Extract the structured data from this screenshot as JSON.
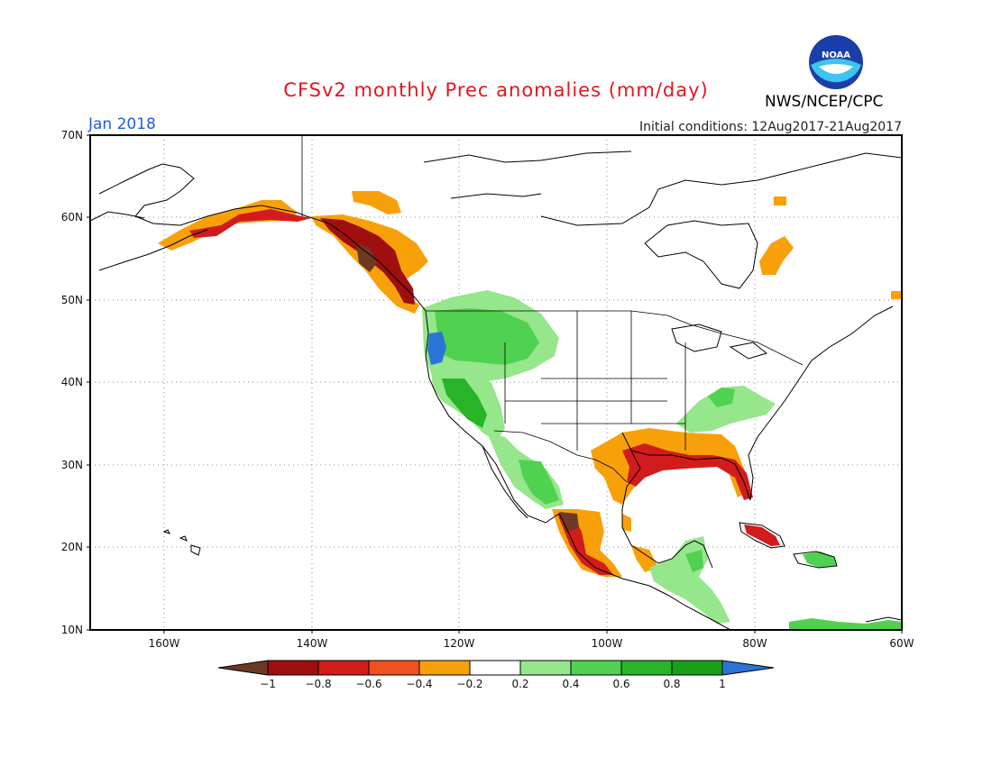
{
  "title": "CFSv2 monthly Prec anomalies (mm/day)",
  "month_label": "Jan 2018",
  "initial_conditions": "Initial conditions: 12Aug2017-21Aug2017",
  "agency": "NWS/NCEP/CPC",
  "logo_text": "NOAA",
  "map": {
    "lon_range": [
      -170,
      -60
    ],
    "lat_range": [
      10,
      70
    ],
    "lat_ticks": [
      "10N",
      "20N",
      "30N",
      "40N",
      "50N",
      "60N",
      "70N"
    ],
    "lon_ticks": [
      "160W",
      "140W",
      "120W",
      "100W",
      "80W",
      "60W"
    ],
    "grid": "dotted"
  },
  "colorbar": {
    "ticks": [
      "−1",
      "−0.8",
      "−0.6",
      "−0.4",
      "−0.2",
      "0.2",
      "0.4",
      "0.6",
      "0.8",
      "1"
    ],
    "bins": [
      {
        "range": "< -1",
        "color": "#6b3a24"
      },
      {
        "range": "-1 to -0.8",
        "color": "#a00f0f"
      },
      {
        "range": "-0.8 to -0.6",
        "color": "#d21c1c"
      },
      {
        "range": "-0.6 to -0.4",
        "color": "#f0501e"
      },
      {
        "range": "-0.4 to -0.2",
        "color": "#f8a00a"
      },
      {
        "range": "-0.2 to 0.2",
        "color": "#ffffff"
      },
      {
        "range": "0.2 to 0.4",
        "color": "#96e68c"
      },
      {
        "range": "0.4 to 0.6",
        "color": "#50d250"
      },
      {
        "range": "0.6 to 0.8",
        "color": "#28b428"
      },
      {
        "range": "0.8 to 1",
        "color": "#18a018"
      },
      {
        "range": "> 1",
        "color": "#2a74d8"
      }
    ]
  },
  "anomaly_regions": [
    {
      "name": "alaska-coast-dry",
      "color": "#d21c1c"
    },
    {
      "name": "alaska-coast-moderate",
      "color": "#f8a00a"
    },
    {
      "name": "bc-coast-very-dry",
      "color": "#a00f0f"
    },
    {
      "name": "bc-coast-extreme",
      "color": "#6b3a24"
    },
    {
      "name": "pacific-nw-wet",
      "color": "#50d250"
    },
    {
      "name": "oregon-coast-very-wet",
      "color": "#2a74d8"
    },
    {
      "name": "california-wet",
      "color": "#28b428"
    },
    {
      "name": "nw-mexico-wet",
      "color": "#50d250"
    },
    {
      "name": "gulf-coast-dry",
      "color": "#f8a00a"
    },
    {
      "name": "gulf-coast-very-dry",
      "color": "#d21c1c"
    },
    {
      "name": "mexico-west-coast-dry",
      "color": "#f8a00a"
    },
    {
      "name": "mexico-west-coast-extreme",
      "color": "#6b3a24"
    },
    {
      "name": "southeast-us-wet",
      "color": "#96e68c"
    },
    {
      "name": "cuba-dry",
      "color": "#d21c1c"
    },
    {
      "name": "yucatan-wet",
      "color": "#96e68c"
    },
    {
      "name": "hudson-bay-dry",
      "color": "#f8a00a"
    },
    {
      "name": "caribbean-wet",
      "color": "#50d250"
    }
  ]
}
